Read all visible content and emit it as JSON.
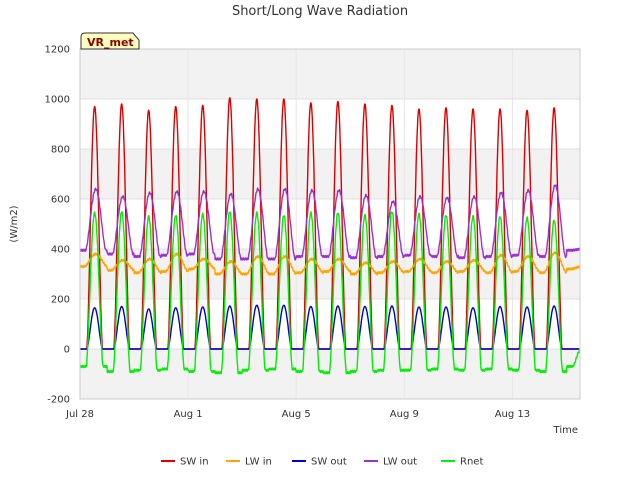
{
  "chart_data": {
    "type": "line",
    "title": "Short/Long Wave Radiation",
    "site_label": "VR_met",
    "xlabel": "Time",
    "ylabel": "(W/m2)",
    "ylim": [
      -200,
      1200
    ],
    "yticks": [
      -200,
      0,
      200,
      400,
      600,
      800,
      1000,
      1200
    ],
    "xlim": [
      "2025-07-28",
      "2025-08-15T12:00"
    ],
    "xtick_dates": [
      "2025-07-28",
      "2025-08-01",
      "2025-08-05",
      "2025-08-09",
      "2025-08-13"
    ],
    "xtick_labels": [
      "Jul 28",
      "Aug 1",
      "Aug 5",
      "Aug 9",
      "Aug 13"
    ],
    "day_dates": [
      "2025-07-28",
      "2025-07-29",
      "2025-07-30",
      "2025-07-31",
      "2025-08-01",
      "2025-08-02",
      "2025-08-03",
      "2025-08-04",
      "2025-08-05",
      "2025-08-06",
      "2025-08-07",
      "2025-08-08",
      "2025-08-09",
      "2025-08-10",
      "2025-08-11",
      "2025-08-12",
      "2025-08-13",
      "2025-08-14",
      "2025-08-15"
    ],
    "grid": true,
    "background_bands": true,
    "legend_position": "bottom",
    "series": [
      {
        "name": "SW in",
        "color": "#dd0000",
        "daily_min": [
          0,
          0,
          0,
          0,
          0,
          0,
          0,
          0,
          0,
          0,
          0,
          0,
          0,
          0,
          0,
          0,
          0,
          0,
          0
        ],
        "daily_peak": [
          970,
          980,
          955,
          970,
          975,
          1005,
          1000,
          1000,
          985,
          990,
          980,
          975,
          960,
          965,
          960,
          960,
          955,
          965,
          0
        ]
      },
      {
        "name": "LW in",
        "color": "#ffa500",
        "daily_min": [
          330,
          315,
          305,
          310,
          320,
          300,
          300,
          300,
          305,
          310,
          300,
          305,
          310,
          305,
          310,
          305,
          310,
          305,
          320
        ],
        "daily_peak": [
          380,
          355,
          360,
          380,
          360,
          350,
          370,
          370,
          360,
          360,
          345,
          350,
          360,
          350,
          355,
          375,
          370,
          385,
          330
        ]
      },
      {
        "name": "SW out",
        "color": "#0000cc",
        "daily_min": [
          0,
          0,
          0,
          0,
          0,
          0,
          0,
          0,
          0,
          0,
          0,
          0,
          0,
          0,
          0,
          0,
          0,
          0,
          0
        ],
        "daily_peak": [
          165,
          170,
          160,
          165,
          168,
          172,
          175,
          175,
          170,
          172,
          170,
          172,
          168,
          168,
          165,
          170,
          168,
          172,
          0
        ]
      },
      {
        "name": "LW out",
        "color": "#9932cc",
        "daily_min": [
          395,
          380,
          370,
          375,
          380,
          360,
          360,
          360,
          370,
          370,
          365,
          370,
          375,
          370,
          365,
          370,
          375,
          370,
          395
        ],
        "daily_peak": [
          640,
          610,
          625,
          630,
          630,
          620,
          640,
          640,
          635,
          635,
          615,
          590,
          610,
          605,
          610,
          625,
          635,
          655,
          400
        ]
      },
      {
        "name": "Rnet",
        "color": "#00ee00",
        "daily_min": [
          -70,
          -90,
          -85,
          -80,
          -90,
          -95,
          -85,
          -80,
          -90,
          -95,
          -90,
          -85,
          -85,
          -80,
          -85,
          -80,
          -85,
          -90,
          -70
        ],
        "daily_peak": [
          545,
          550,
          530,
          535,
          540,
          550,
          545,
          535,
          545,
          545,
          535,
          550,
          540,
          535,
          530,
          530,
          525,
          515,
          0
        ]
      }
    ]
  }
}
